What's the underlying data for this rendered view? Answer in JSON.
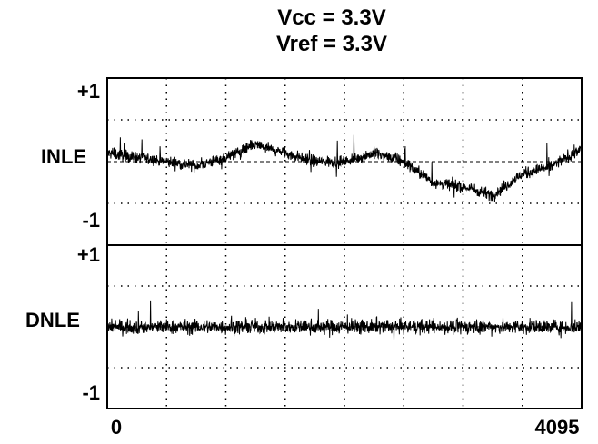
{
  "chart_data": {
    "type": "line",
    "title": [
      "Vcc = 3.3V",
      "Vref = 3.3V"
    ],
    "x_axis": {
      "min": 0,
      "max": 4095,
      "tick_labels": [
        "0",
        "4095"
      ]
    },
    "grid": true,
    "panels": [
      {
        "name": "INLE",
        "ylim": [
          -1,
          1
        ],
        "ytick_labels": [
          "+1",
          "-1"
        ],
        "series": {
          "x": [
            0,
            256,
            512,
            768,
            1024,
            1280,
            1536,
            1792,
            2048,
            2304,
            2560,
            2816,
            3072,
            3328,
            3584,
            3840,
            4095
          ],
          "y": [
            0.1,
            0.05,
            0.0,
            -0.05,
            0.05,
            0.2,
            0.1,
            0.0,
            0.0,
            0.1,
            0.0,
            -0.25,
            -0.3,
            -0.4,
            -0.15,
            -0.05,
            0.15
          ]
        },
        "noise_amplitude": 0.12
      },
      {
        "name": "DNLE",
        "ylim": [
          -1,
          1
        ],
        "ytick_labels": [
          "+1",
          "-1"
        ],
        "series": {
          "x": [
            0,
            1024,
            2048,
            3072,
            4095
          ],
          "y": [
            0.0,
            0.0,
            0.0,
            0.0,
            0.0
          ]
        },
        "noise_amplitude": 0.15
      }
    ]
  }
}
